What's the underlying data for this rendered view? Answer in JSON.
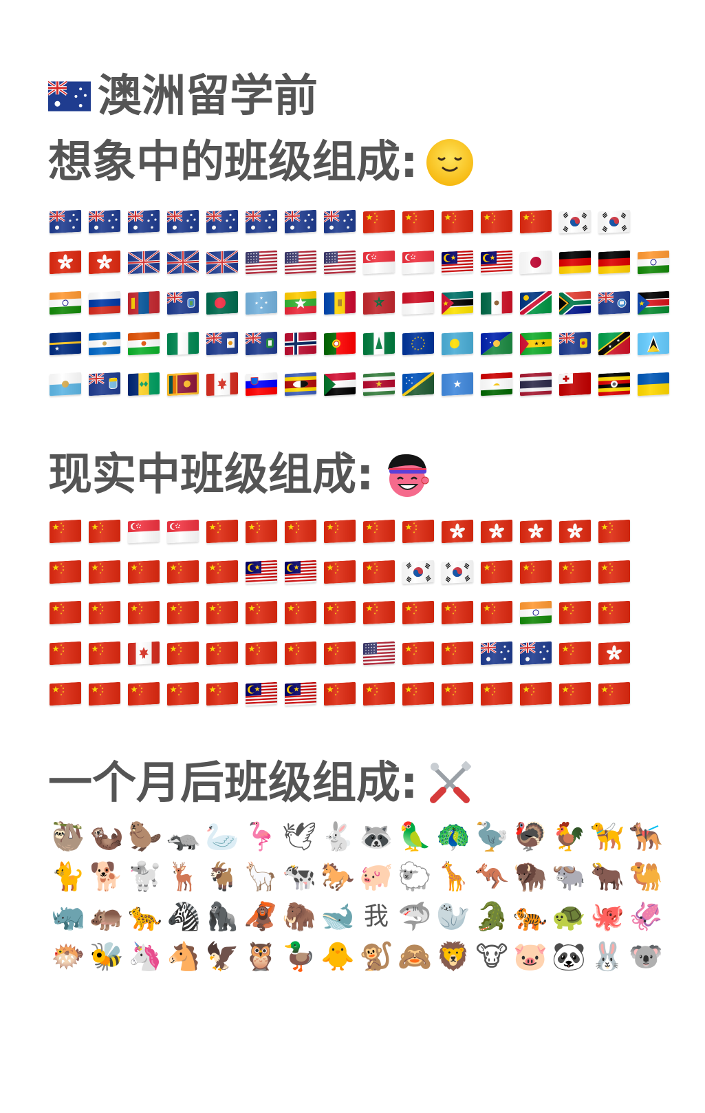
{
  "title": "澳洲留学前",
  "imagined": {
    "heading": "想象中的班级组成:",
    "emoji": "smiling-face",
    "rows": [
      [
        "au",
        "au",
        "au",
        "au",
        "au",
        "au",
        "au",
        "au",
        "cn",
        "cn",
        "cn",
        "cn",
        "cn",
        "kr",
        "kr"
      ],
      [
        "hk",
        "hk",
        "gb",
        "gb",
        "gb",
        "us",
        "us",
        "us",
        "sg",
        "sg",
        "my",
        "my",
        "jp",
        "de",
        "de",
        "in"
      ],
      [
        "in",
        "ru",
        "mn",
        "ms",
        "bd",
        "fm",
        "mm",
        "md",
        "ma",
        "id",
        "mz",
        "mx",
        "na",
        "za",
        "fk",
        "ss"
      ],
      [
        "nr",
        "ni",
        "ne",
        "ng",
        "ai",
        "vg",
        "no",
        "pt",
        "nf",
        "eu",
        "pw",
        "cx",
        "st",
        "tc",
        "kn",
        "lc"
      ],
      [
        "sm",
        "sh",
        "vc",
        "lk",
        "ca",
        "si",
        "sz",
        "sd",
        "sr",
        "sb",
        "so",
        "tj",
        "th",
        "to",
        "ug",
        "ua"
      ]
    ]
  },
  "real": {
    "heading": "现实中班级组成:",
    "emoji": "laughing-headband-face",
    "rows": [
      [
        "cn",
        "cn",
        "sg",
        "sg",
        "cn",
        "cn",
        "cn",
        "cn",
        "cn",
        "cn",
        "hk",
        "hk",
        "hk",
        "hk",
        "cn"
      ],
      [
        "cn",
        "cn",
        "cn",
        "cn",
        "cn",
        "my",
        "my",
        "cn",
        "cn",
        "kr",
        "kr",
        "cn",
        "cn",
        "cn",
        "cn"
      ],
      [
        "cn",
        "cn",
        "cn",
        "cn",
        "cn",
        "cn",
        "cn",
        "cn",
        "cn",
        "cn",
        "cn",
        "cn",
        "in",
        "cn",
        "cn"
      ],
      [
        "cn",
        "cn",
        "ca",
        "cn",
        "cn",
        "cn",
        "cn",
        "cn",
        "us",
        "cn",
        "cn",
        "au",
        "au",
        "cn",
        "hk"
      ],
      [
        "cn",
        "cn",
        "cn",
        "cn",
        "cn",
        "my",
        "my",
        "cn",
        "cn",
        "cn",
        "cn",
        "cn",
        "cn",
        "cn",
        "cn"
      ]
    ]
  },
  "month": {
    "heading": "一个月后班级组成:",
    "emoji": "hammer-and-wrench",
    "rows": [
      [
        "🦥",
        "🦦",
        "🦫",
        "🦡",
        "🦢",
        "🦩",
        "🕊",
        "🐇",
        "🦝",
        "🦜",
        "🦚",
        "🦤",
        "🦃",
        "🐓",
        "🦮",
        "🐕‍🦺"
      ],
      [
        "🐈",
        "🐕",
        "🐩",
        "🦌",
        "🐐",
        "🦙",
        "🐄",
        "🐎",
        "🐖",
        "🐑",
        "🦒",
        "🦘",
        "🦬",
        "🐃",
        "🐂",
        "🐫"
      ],
      [
        "🦏",
        "🦛",
        "🐆",
        "🦓",
        "🦍",
        "🦧",
        "🦣",
        "🐋",
        "我",
        "🦈",
        "🦭",
        "🐊",
        "🐅",
        "🐢",
        "🐙",
        "🦑"
      ],
      [
        "🐡",
        "🐝",
        "🦄",
        "🐴",
        "🦅",
        "🦉",
        "🦆",
        "🐥",
        "🐒",
        "🙈",
        "🦁",
        "🐮",
        "🐷",
        "🐼",
        "🐰",
        "🐨"
      ]
    ]
  }
}
